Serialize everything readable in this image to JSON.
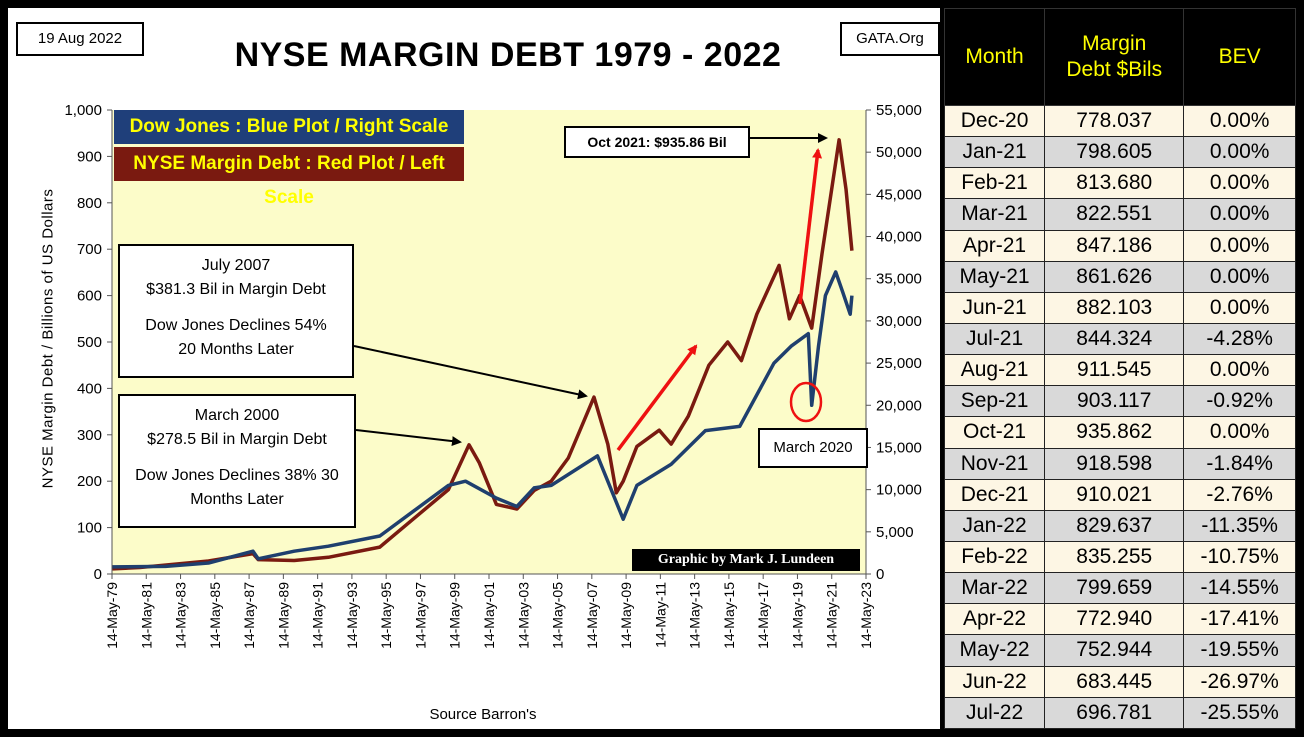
{
  "header": {
    "date": "19 Aug 2022",
    "site": "GATA.Org",
    "title": "NYSE MARGIN DEBT 1979 - 2022"
  },
  "legend": {
    "dow": "Dow Jones : Blue Plot / Right Scale",
    "nyse": "NYSE Margin Debt : Red Plot / Left Scale"
  },
  "annotations": {
    "july2007": {
      "l1": "July 2007",
      "l2": "$381.3  Bil in Margin Debt",
      "l3": "Dow Jones Declines 54%",
      "l4": "20 Months Later"
    },
    "march2000": {
      "l1": "March  2000",
      "l2": "$278.5  Bil in Margin Debt",
      "l3": "Dow Jones Declines 38% 30",
      "l4": "Months Later"
    },
    "peak": "Oct 2021:  $935.86  Bil",
    "march2020": "March  2020",
    "credit": "Graphic by Mark J. Lundeen",
    "source": "Source Barron's"
  },
  "colors": {
    "plot_bg": "#fcfcc9",
    "margin_line": "#7a1a10",
    "dow_line": "#1f3f6e",
    "arrow_red": "#ee1111",
    "circle": "#ee1111"
  },
  "chart_data": {
    "type": "line",
    "title": "NYSE MARGIN DEBT 1979 - 2022",
    "xlabel": "Source Barron's",
    "ylabel_left": "NYSE Margin Debt  /  Billions of  US  Dollars",
    "ylim_left": [
      0,
      1000
    ],
    "ylim_right": [
      0,
      55000
    ],
    "xlim": [
      1979.37,
      2023.37
    ],
    "yticks_left": [
      "0",
      "100",
      "200",
      "300",
      "400",
      "500",
      "600",
      "700",
      "800",
      "900",
      "1,000"
    ],
    "yticks_right": [
      "0",
      "5,000",
      "10,000",
      "15,000",
      "20,000",
      "25,000",
      "30,000",
      "35,000",
      "40,000",
      "45,000",
      "50,000",
      "55,000"
    ],
    "xticks": [
      "14-May-79",
      "14-May-81",
      "14-May-83",
      "14-May-85",
      "14-May-87",
      "14-May-89",
      "14-May-91",
      "14-May-93",
      "14-May-95",
      "14-May-97",
      "14-May-99",
      "14-May-01",
      "14-May-03",
      "14-May-05",
      "14-May-07",
      "14-May-09",
      "14-May-11",
      "14-May-13",
      "14-May-15",
      "14-May-17",
      "14-May-19",
      "14-May-21",
      "14-May-23"
    ],
    "series": [
      {
        "name": "NYSE Margin Debt (left, $Bil)",
        "axis": "left",
        "x": [
          1979.4,
          1981,
          1983,
          1985,
          1987.6,
          1987.9,
          1990,
          1992,
          1995,
          1997,
          1999,
          2000.2,
          2000.8,
          2001.8,
          2003,
          2004,
          2005,
          2006,
          2007.5,
          2008.3,
          2008.8,
          2009.2,
          2010,
          2011.3,
          2012,
          2013,
          2014.2,
          2015.3,
          2016.1,
          2017,
          2018.3,
          2018.9,
          2019.5,
          2020.2,
          2020.8,
          2021.8,
          2022.2,
          2022.55
        ],
        "y": [
          11,
          14,
          21,
          28,
          44,
          31,
          29,
          36,
          58,
          120,
          182,
          278.5,
          240,
          150,
          140,
          180,
          200,
          250,
          381.3,
          280,
          175,
          200,
          275,
          310,
          280,
          340,
          450,
          500,
          460,
          560,
          665,
          550,
          600,
          530,
          690,
          935.86,
          829.6,
          696.8
        ]
      },
      {
        "name": "Dow Jones (right)",
        "axis": "right",
        "x": [
          1979.4,
          1982.5,
          1985,
          1987.6,
          1987.9,
          1990,
          1992,
          1995,
          1997,
          1999,
          2000,
          2001.8,
          2003,
          2004,
          2005,
          2007.7,
          2009.2,
          2010,
          2012,
          2014,
          2016,
          2018,
          2019,
          2020,
          2020.2,
          2020.6,
          2021,
          2021.6,
          2022,
          2022.45,
          2022.55
        ],
        "y": [
          840,
          900,
          1300,
          2700,
          1800,
          2700,
          3300,
          4500,
          7500,
          10500,
          11000,
          9000,
          8000,
          10200,
          10500,
          14000,
          6500,
          10500,
          13000,
          17000,
          17500,
          25000,
          27000,
          28500,
          20000,
          27000,
          33000,
          35800,
          33500,
          30800,
          33000
        ]
      }
    ],
    "annotations": [
      "July 2007: $381.3 Bil in Margin Debt, Dow Jones Declines 54% 20 Months Later",
      "March 2000: $278.5 Bil in Margin Debt, Dow Jones Declines 38% 30 Months Later",
      "Oct 2021: $935.86 Bil",
      "March 2020"
    ]
  },
  "table": {
    "headers": [
      "Month",
      "Margin\nDebt $Bils",
      "BEV"
    ],
    "header_lines": {
      "month": "Month",
      "debt1": "Margin",
      "debt2": "Debt $Bils",
      "bev": "BEV"
    },
    "rows": [
      [
        "Dec-20",
        "778.037",
        "0.00%"
      ],
      [
        "Jan-21",
        "798.605",
        "0.00%"
      ],
      [
        "Feb-21",
        "813.680",
        "0.00%"
      ],
      [
        "Mar-21",
        "822.551",
        "0.00%"
      ],
      [
        "Apr-21",
        "847.186",
        "0.00%"
      ],
      [
        "May-21",
        "861.626",
        "0.00%"
      ],
      [
        "Jun-21",
        "882.103",
        "0.00%"
      ],
      [
        "Jul-21",
        "844.324",
        "-4.28%"
      ],
      [
        "Aug-21",
        "911.545",
        "0.00%"
      ],
      [
        "Sep-21",
        "903.117",
        "-0.92%"
      ],
      [
        "Oct-21",
        "935.862",
        "0.00%"
      ],
      [
        "Nov-21",
        "918.598",
        "-1.84%"
      ],
      [
        "Dec-21",
        "910.021",
        "-2.76%"
      ],
      [
        "Jan-22",
        "829.637",
        "-11.35%"
      ],
      [
        "Feb-22",
        "835.255",
        "-10.75%"
      ],
      [
        "Mar-22",
        "799.659",
        "-14.55%"
      ],
      [
        "Apr-22",
        "772.940",
        "-17.41%"
      ],
      [
        "May-22",
        "752.944",
        "-19.55%"
      ],
      [
        "Jun-22",
        "683.445",
        "-26.97%"
      ],
      [
        "Jul-22",
        "696.781",
        "-25.55%"
      ]
    ]
  }
}
